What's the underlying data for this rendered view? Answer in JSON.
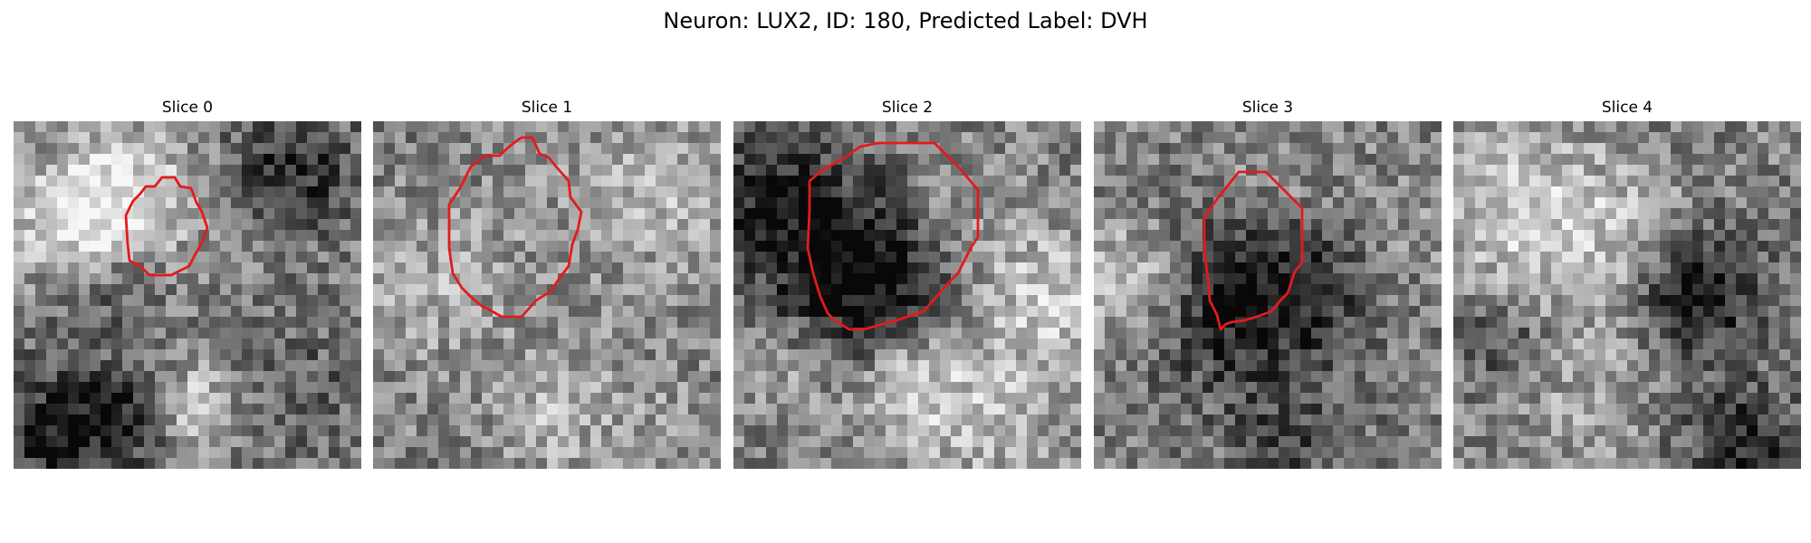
{
  "figure": {
    "title": "Neuron: LUX2, ID: 180, Predicted Label: DVH",
    "contour_color": "#e41a1c"
  },
  "panels": [
    {
      "title": "Slice 0"
    },
    {
      "title": "Slice 1"
    },
    {
      "title": "Slice 2"
    },
    {
      "title": "Slice 3"
    },
    {
      "title": "Slice 4"
    }
  ]
}
